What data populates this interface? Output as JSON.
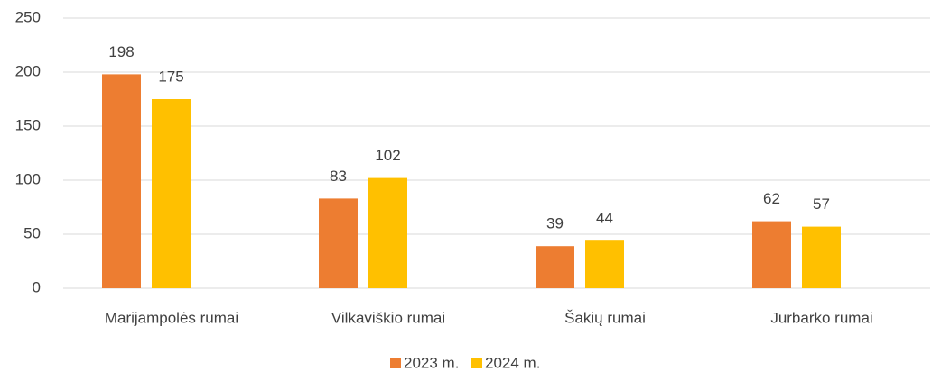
{
  "chart_data": {
    "type": "bar",
    "categories": [
      "Marijampolės rūmai",
      "Vilkaviškio rūmai",
      "Šakių rūmai",
      "Jurbarko rūmai"
    ],
    "series": [
      {
        "name": "2023 m.",
        "color": "#ED7D31",
        "values": [
          198,
          83,
          39,
          62
        ]
      },
      {
        "name": "2024 m.",
        "color": "#FFC000",
        "values": [
          175,
          102,
          44,
          57
        ]
      }
    ],
    "ylim": [
      0,
      250
    ],
    "yticks": [
      0,
      50,
      100,
      150,
      200,
      250
    ],
    "grid": true,
    "legend": "bottom"
  }
}
